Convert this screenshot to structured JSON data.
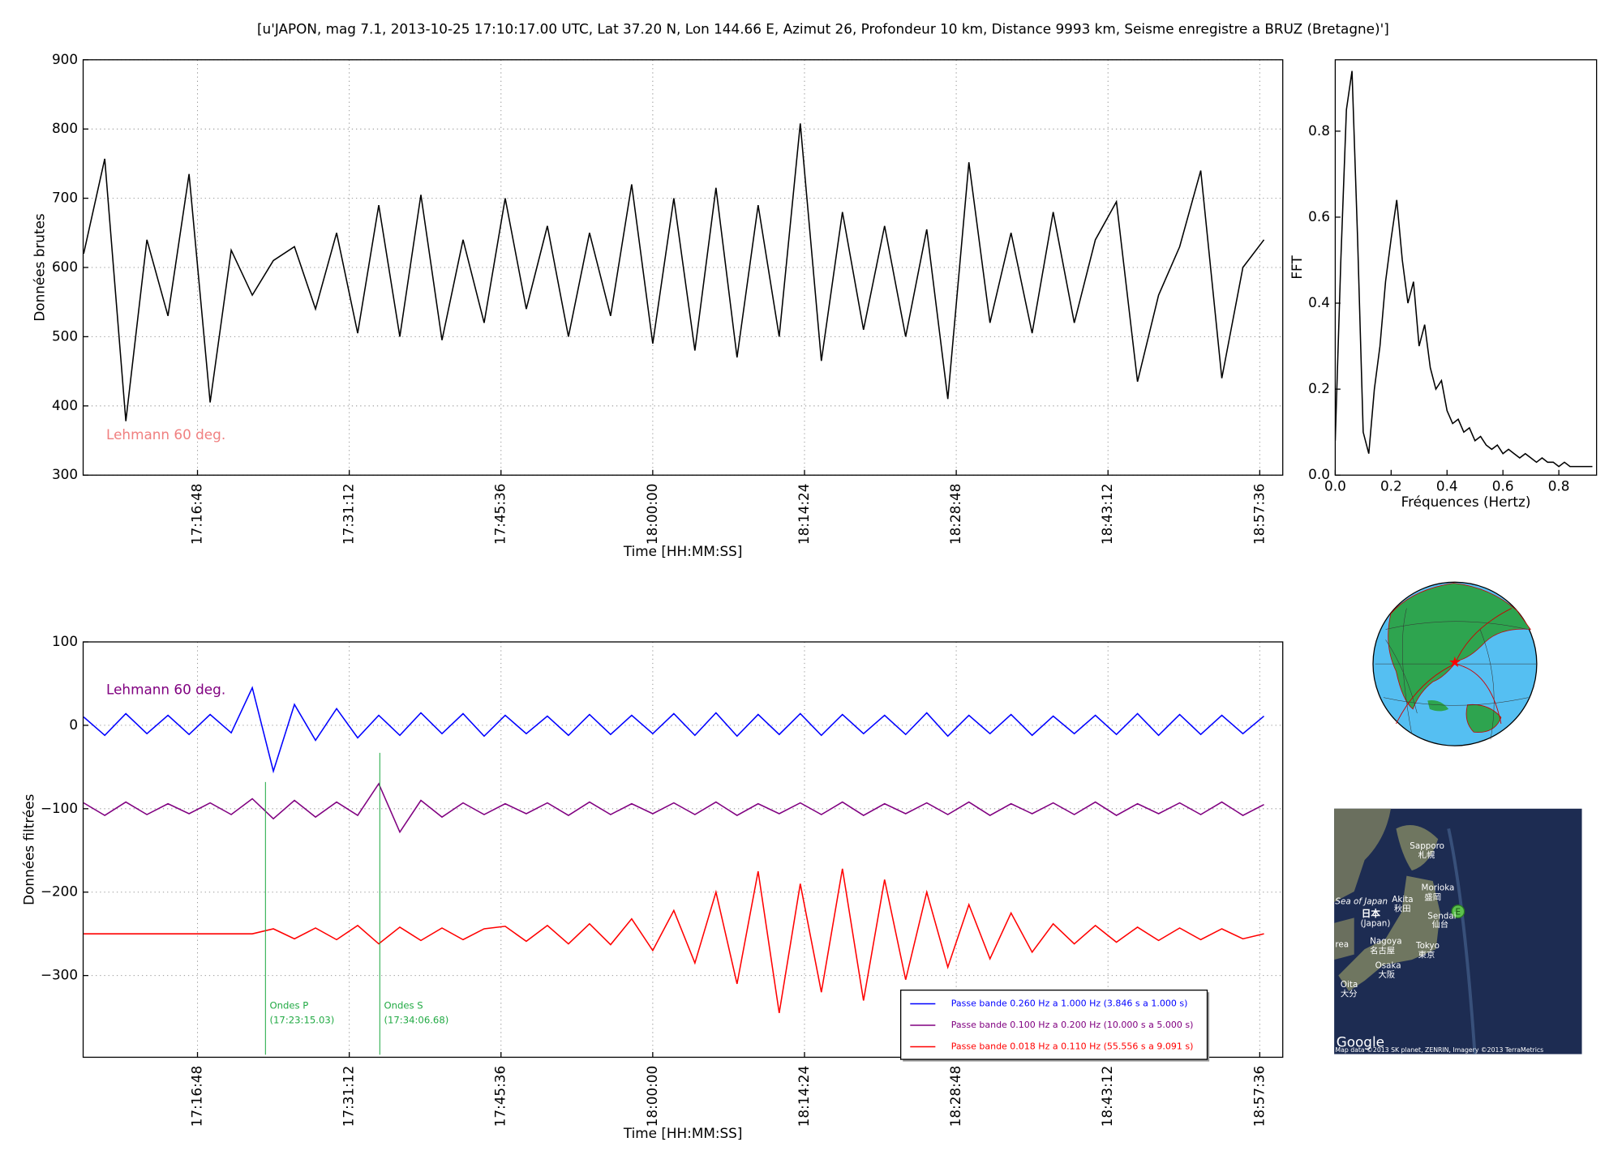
{
  "title": "[u'JAPON, mag 7.1, 2013-10-25 17:10:17.00 UTC, Lat 37.20 N, Lon 144.66 E, Azimut 26, Profondeur 10 km, Distance 9993 km, Seisme enregistre a BRUZ (Bretagne)']",
  "chart_data": [
    {
      "type": "line",
      "xlabel": "Time [HH:MM:SS]",
      "ylabel": "Données brutes",
      "grid": true,
      "xlim": [
        61557,
        68387
      ],
      "ylim": [
        300,
        900
      ],
      "xticks": [
        {
          "value": 62208,
          "label": "17:16:48"
        },
        {
          "value": 63072,
          "label": "17:31:12"
        },
        {
          "value": 63936,
          "label": "17:45:36"
        },
        {
          "value": 64800,
          "label": "18:00:00"
        },
        {
          "value": 65664,
          "label": "18:14:24"
        },
        {
          "value": 66528,
          "label": "18:28:48"
        },
        {
          "value": 67392,
          "label": "18:43:12"
        },
        {
          "value": 68256,
          "label": "18:57:36"
        }
      ],
      "yticks": [
        300,
        400,
        500,
        600,
        700,
        800,
        900
      ],
      "annotation": {
        "text": "Lehmann 60 deg.",
        "color": "#f08080"
      },
      "x": [
        61560,
        61680,
        61800,
        61920,
        62040,
        62160,
        62280,
        62400,
        62520,
        62640,
        62760,
        62880,
        63000,
        63120,
        63240,
        63360,
        63480,
        63600,
        63720,
        63840,
        63960,
        64080,
        64200,
        64320,
        64440,
        64560,
        64680,
        64800,
        64920,
        65040,
        65160,
        65280,
        65400,
        65520,
        65640,
        65760,
        65880,
        66000,
        66120,
        66240,
        66360,
        66480,
        66600,
        66720,
        66840,
        66960,
        67080,
        67200,
        67320,
        67440,
        67560,
        67680,
        67800,
        67920,
        68040,
        68160,
        68280
      ],
      "series": [
        {
          "color": "#000000",
          "values": [
            620,
            757,
            378,
            640,
            530,
            735,
            405,
            625,
            560,
            610,
            630,
            540,
            650,
            505,
            690,
            500,
            705,
            495,
            640,
            520,
            700,
            540,
            660,
            500,
            650,
            530,
            720,
            490,
            700,
            480,
            715,
            470,
            690,
            500,
            808,
            465,
            680,
            510,
            660,
            500,
            655,
            410,
            752,
            520,
            650,
            505,
            680,
            520,
            640,
            695,
            435,
            560,
            630,
            740,
            440,
            600,
            640
          ]
        }
      ]
    },
    {
      "type": "line",
      "xlabel": "Fréquences (Hertz)",
      "ylabel": "FFT",
      "grid": false,
      "xlim": [
        0,
        0.935
      ],
      "ylim": [
        0,
        0.966
      ],
      "xticks": [
        {
          "value": 0,
          "label": "0.0"
        },
        0.2,
        0.4,
        0.6,
        0.8
      ],
      "yticks": [
        {
          "value": 0,
          "label": "0.0"
        },
        0.2,
        0.4,
        0.6,
        0.8
      ],
      "x": [
        0,
        0.02,
        0.04,
        0.06,
        0.08,
        0.1,
        0.12,
        0.14,
        0.16,
        0.18,
        0.2,
        0.22,
        0.24,
        0.26,
        0.28,
        0.3,
        0.32,
        0.34,
        0.36,
        0.38,
        0.4,
        0.42,
        0.44,
        0.46,
        0.48,
        0.5,
        0.52,
        0.54,
        0.56,
        0.58,
        0.6,
        0.62,
        0.64,
        0.66,
        0.68,
        0.7,
        0.72,
        0.74,
        0.76,
        0.78,
        0.8,
        0.82,
        0.84,
        0.86,
        0.88,
        0.9,
        0.92
      ],
      "series": [
        {
          "color": "#000000",
          "values": [
            0.08,
            0.5,
            0.85,
            0.94,
            0.55,
            0.1,
            0.05,
            0.2,
            0.3,
            0.45,
            0.55,
            0.64,
            0.5,
            0.4,
            0.45,
            0.3,
            0.35,
            0.25,
            0.2,
            0.22,
            0.15,
            0.12,
            0.13,
            0.1,
            0.11,
            0.08,
            0.09,
            0.07,
            0.06,
            0.07,
            0.05,
            0.06,
            0.05,
            0.04,
            0.05,
            0.04,
            0.03,
            0.04,
            0.03,
            0.03,
            0.02,
            0.03,
            0.02,
            0.02,
            0.02,
            0.02,
            0.02
          ]
        }
      ]
    },
    {
      "type": "line",
      "xlabel": "Time [HH:MM:SS]",
      "ylabel": "Données filtrées",
      "grid": true,
      "legend": "lower right",
      "xlim": [
        61557,
        68387
      ],
      "ylim": [
        -398,
        100
      ],
      "xticks": [
        {
          "value": 62208,
          "label": "17:16:48"
        },
        {
          "value": 63072,
          "label": "17:31:12"
        },
        {
          "value": 63936,
          "label": "17:45:36"
        },
        {
          "value": 64800,
          "label": "18:00:00"
        },
        {
          "value": 65664,
          "label": "18:14:24"
        },
        {
          "value": 66528,
          "label": "18:28:48"
        },
        {
          "value": 67392,
          "label": "18:43:12"
        },
        {
          "value": 68256,
          "label": "18:57:36"
        }
      ],
      "yticks": [
        {
          "value": -300,
          "label": "−300"
        },
        {
          "value": -200,
          "label": "−200"
        },
        {
          "value": -100,
          "label": "−100"
        },
        0,
        100
      ],
      "annotation": {
        "text": "Lehmann 60 deg.",
        "color": "#800080"
      },
      "vlines": [
        {
          "x": 62595,
          "ymin": -395,
          "ymax": -68,
          "label": "Ondes P",
          "sublabel": "(17:23:15.03)",
          "color": "#22aa44"
        },
        {
          "x": 63246,
          "ymin": -395,
          "ymax": -33,
          "label": "Ondes S",
          "sublabel": "(17:34:06.68)",
          "color": "#22aa44"
        }
      ],
      "x": [
        61560,
        61680,
        61800,
        61920,
        62040,
        62160,
        62280,
        62400,
        62520,
        62640,
        62760,
        62880,
        63000,
        63120,
        63240,
        63360,
        63480,
        63600,
        63720,
        63840,
        63960,
        64080,
        64200,
        64320,
        64440,
        64560,
        64680,
        64800,
        64920,
        65040,
        65160,
        65280,
        65400,
        65520,
        65640,
        65760,
        65880,
        66000,
        66120,
        66240,
        66360,
        66480,
        66600,
        66720,
        66840,
        66960,
        67080,
        67200,
        67320,
        67440,
        67560,
        67680,
        67800,
        67920,
        68040,
        68160,
        68280
      ],
      "series": [
        {
          "name": "Passe bande 0.260 Hz a 1.000 Hz (3.846 s a 1.000 s)",
          "color": "#0000ff",
          "values": [
            10,
            -12,
            14,
            -10,
            12,
            -11,
            13,
            -9,
            45,
            -55,
            25,
            -18,
            20,
            -15,
            12,
            -12,
            15,
            -10,
            14,
            -13,
            12,
            -10,
            11,
            -12,
            13,
            -11,
            12,
            -10,
            14,
            -12,
            15,
            -13,
            13,
            -11,
            14,
            -12,
            13,
            -10,
            12,
            -11,
            15,
            -13,
            12,
            -10,
            13,
            -12,
            11,
            -10,
            12,
            -11,
            14,
            -12,
            13,
            -11,
            12,
            -10,
            11
          ]
        },
        {
          "name": "Passe bande 0.100 Hz a 0.200 Hz (10.000 s a 5.000 s)",
          "color": "#800080",
          "values": [
            -93,
            -108,
            -92,
            -107,
            -94,
            -106,
            -93,
            -107,
            -88,
            -112,
            -90,
            -110,
            -92,
            -108,
            -70,
            -128,
            -90,
            -110,
            -93,
            -107,
            -94,
            -106,
            -93,
            -108,
            -92,
            -107,
            -94,
            -106,
            -93,
            -107,
            -92,
            -108,
            -94,
            -106,
            -93,
            -107,
            -92,
            -108,
            -94,
            -106,
            -93,
            -107,
            -92,
            -108,
            -94,
            -106,
            -93,
            -107,
            -92,
            -108,
            -94,
            -106,
            -93,
            -107,
            -92,
            -108,
            -95
          ]
        },
        {
          "name": "Passe bande 0.018 Hz a 0.110 Hz (55.556 s a 9.091 s)",
          "color": "#ff0000",
          "values": [
            -250,
            -250,
            -250,
            -250,
            -250,
            -250,
            -250,
            -250,
            -250,
            -244,
            -256,
            -243,
            -257,
            -240,
            -262,
            -242,
            -258,
            -243,
            -257,
            -244,
            -241,
            -259,
            -240,
            -262,
            -238,
            -263,
            -232,
            -270,
            -222,
            -285,
            -200,
            -310,
            -175,
            -345,
            -190,
            -320,
            -172,
            -330,
            -185,
            -305,
            -200,
            -290,
            -215,
            -280,
            -225,
            -272,
            -238,
            -262,
            -240,
            -260,
            -242,
            -258,
            -243,
            -257,
            -244,
            -256,
            -250
          ]
        }
      ]
    }
  ],
  "map": {
    "labels": [
      "Sapporo",
      "札幌",
      "Sea of Japan",
      "Akita",
      "秋田",
      "Morioka",
      "盛岡",
      "日本",
      "(Japan)",
      "Sendai",
      "仙台",
      "Nagoya",
      "名古屋",
      "Tokyo",
      "東京",
      "Osaka",
      "大阪",
      "Oita",
      "大分",
      "rea",
      "Google",
      "Map data ©2013 SK planet, ZENRIN, Imagery ©2013 TerraMetrics",
      "E"
    ]
  }
}
